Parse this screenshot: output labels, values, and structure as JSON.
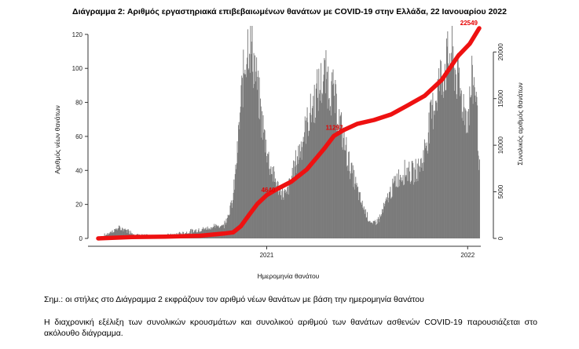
{
  "header": {
    "title": "Διάγραμμα 2: Αριθμός εργαστηριακά επιβεβαιωμένων θανάτων με COVID-19 στην Ελλάδα, 22 Ιανουαρίου 2022"
  },
  "notes": {
    "note1": "Σημ.: οι στήλες στο Διάγραμμα 2 εκφράζουν τον αριθμό νέων θανάτων με βάση την ημερομηνία θανάτου",
    "note2": "Η διαχρονική εξέλιξη των συνολικών κρουσμάτων και συνολικού αριθμού των θανάτων ασθενών COVID-19 παρουσιάζεται στο ακόλουθο διάγραμμα."
  },
  "colors": {
    "bars": "#7a7a7a",
    "cumulative_line": "#ee1111",
    "callouts": "#e60000"
  },
  "chart_data": {
    "type": "bar",
    "xlabel": "Ημερομηνία θανάτου",
    "ylabel": "Αριθμός νέων θανάτων",
    "y2label": "Συνολικός αριθμός θανάτων",
    "ylim": [
      0,
      125
    ],
    "y2lim": [
      0,
      22800
    ],
    "yticks": [
      0,
      20,
      40,
      60,
      80,
      100,
      120
    ],
    "y2ticks": [
      0,
      5000,
      10000,
      15000,
      20000
    ],
    "xrange": [
      "2020-03-01",
      "2022-01-22"
    ],
    "xticks": [
      {
        "date": "2021-01-01",
        "label": "2021"
      },
      {
        "date": "2022-01-01",
        "label": "2022"
      }
    ],
    "daily_deaths": [
      {
        "date": "2020-03-01",
        "value": 0
      },
      {
        "date": "2020-03-20",
        "value": 3
      },
      {
        "date": "2020-04-05",
        "value": 6
      },
      {
        "date": "2020-04-20",
        "value": 5
      },
      {
        "date": "2020-05-10",
        "value": 2
      },
      {
        "date": "2020-06-10",
        "value": 1
      },
      {
        "date": "2020-07-15",
        "value": 2
      },
      {
        "date": "2020-08-15",
        "value": 4
      },
      {
        "date": "2020-09-15",
        "value": 6
      },
      {
        "date": "2020-10-15",
        "value": 8
      },
      {
        "date": "2020-10-31",
        "value": 22
      },
      {
        "date": "2020-11-08",
        "value": 50
      },
      {
        "date": "2020-11-16",
        "value": 85
      },
      {
        "date": "2020-11-22",
        "value": 105
      },
      {
        "date": "2020-11-28",
        "value": 118
      },
      {
        "date": "2020-12-05",
        "value": 110
      },
      {
        "date": "2020-12-12",
        "value": 95
      },
      {
        "date": "2020-12-22",
        "value": 70
      },
      {
        "date": "2021-01-05",
        "value": 45
      },
      {
        "date": "2021-01-20",
        "value": 30
      },
      {
        "date": "2021-02-05",
        "value": 25
      },
      {
        "date": "2021-02-20",
        "value": 42
      },
      {
        "date": "2021-03-10",
        "value": 62
      },
      {
        "date": "2021-03-25",
        "value": 78
      },
      {
        "date": "2021-04-08",
        "value": 90
      },
      {
        "date": "2021-04-18",
        "value": 95
      },
      {
        "date": "2021-05-01",
        "value": 85
      },
      {
        "date": "2021-05-15",
        "value": 65
      },
      {
        "date": "2021-06-01",
        "value": 42
      },
      {
        "date": "2021-06-20",
        "value": 22
      },
      {
        "date": "2021-07-10",
        "value": 8
      },
      {
        "date": "2021-07-25",
        "value": 12
      },
      {
        "date": "2021-08-10",
        "value": 25
      },
      {
        "date": "2021-08-25",
        "value": 35
      },
      {
        "date": "2021-09-10",
        "value": 40
      },
      {
        "date": "2021-09-25",
        "value": 38
      },
      {
        "date": "2021-10-10",
        "value": 45
      },
      {
        "date": "2021-10-25",
        "value": 70
      },
      {
        "date": "2021-11-08",
        "value": 90
      },
      {
        "date": "2021-11-20",
        "value": 100
      },
      {
        "date": "2021-12-01",
        "value": 108
      },
      {
        "date": "2021-12-12",
        "value": 95
      },
      {
        "date": "2021-12-22",
        "value": 80
      },
      {
        "date": "2022-01-01",
        "value": 70
      },
      {
        "date": "2022-01-08",
        "value": 92
      },
      {
        "date": "2022-01-15",
        "value": 90
      },
      {
        "date": "2022-01-22",
        "value": 40
      }
    ],
    "cumulative_deaths": [
      {
        "date": "2020-03-01",
        "value": 0
      },
      {
        "date": "2020-05-01",
        "value": 140
      },
      {
        "date": "2020-07-01",
        "value": 190
      },
      {
        "date": "2020-09-01",
        "value": 290
      },
      {
        "date": "2020-10-15",
        "value": 520
      },
      {
        "date": "2020-11-01",
        "value": 650
      },
      {
        "date": "2020-11-15",
        "value": 1300
      },
      {
        "date": "2020-12-01",
        "value": 2600
      },
      {
        "date": "2020-12-15",
        "value": 3700
      },
      {
        "date": "2021-01-01",
        "value": 4650
      },
      {
        "date": "2021-01-20",
        "value": 5300
      },
      {
        "date": "2021-02-15",
        "value": 6100
      },
      {
        "date": "2021-03-15",
        "value": 7400
      },
      {
        "date": "2021-04-15",
        "value": 9600
      },
      {
        "date": "2021-05-03",
        "value": 11000
      },
      {
        "date": "2021-05-20",
        "value": 11600
      },
      {
        "date": "2021-06-15",
        "value": 12300
      },
      {
        "date": "2021-07-15",
        "value": 12700
      },
      {
        "date": "2021-08-15",
        "value": 13300
      },
      {
        "date": "2021-09-15",
        "value": 14300
      },
      {
        "date": "2021-10-15",
        "value": 15300
      },
      {
        "date": "2021-11-15",
        "value": 17000
      },
      {
        "date": "2021-12-15",
        "value": 19600
      },
      {
        "date": "2022-01-05",
        "value": 20900
      },
      {
        "date": "2022-01-22",
        "value": 22549
      }
    ],
    "callouts": [
      {
        "label": "4640",
        "date": "2021-01-01",
        "value": 4640
      },
      {
        "label": "11297",
        "date": "2021-05-01",
        "value": 11297
      },
      {
        "label": "22549",
        "date": "2022-01-22",
        "value": 22549
      }
    ]
  }
}
